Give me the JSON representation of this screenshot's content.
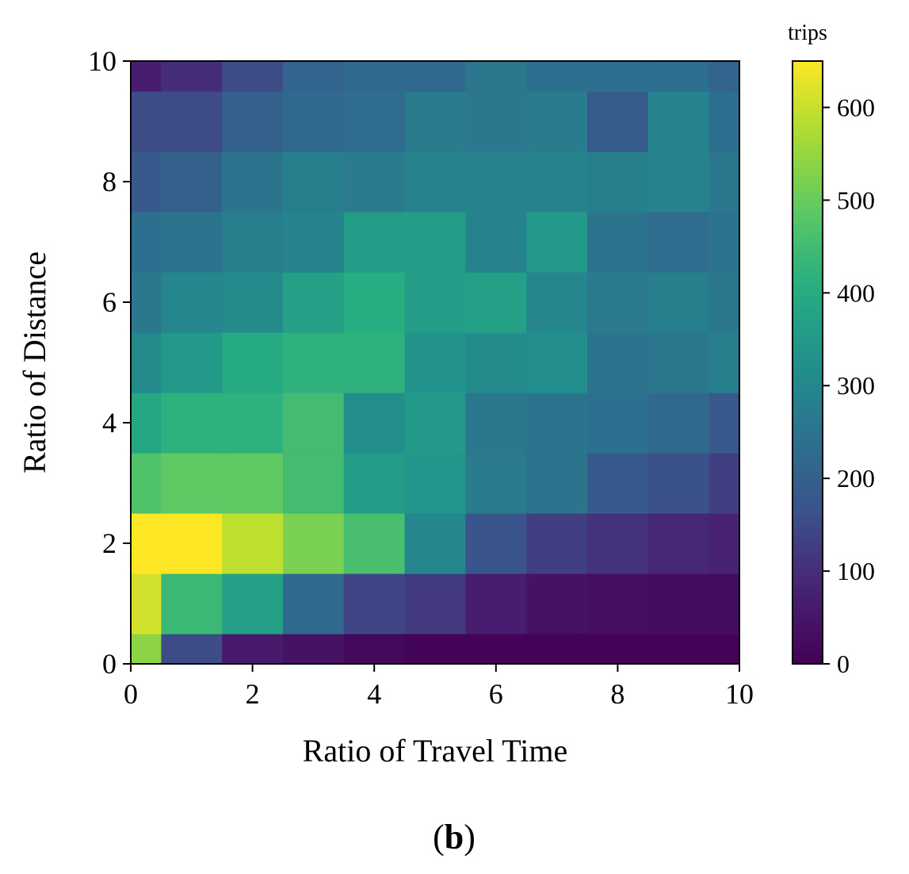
{
  "chart_data": {
    "type": "heatmap",
    "xlabel": "Ratio of Travel Time",
    "ylabel": "Ratio of Distance",
    "panel_label": "b",
    "colorbar": {
      "title": "trips",
      "min": 0,
      "max": 650,
      "colormap": "viridis",
      "ticks": [
        0,
        100,
        200,
        300,
        400,
        500,
        600
      ]
    },
    "xlim": [
      0,
      10
    ],
    "ylim": [
      0,
      10
    ],
    "x_ticks": [
      0,
      2,
      4,
      6,
      8,
      10
    ],
    "y_ticks": [
      0,
      2,
      4,
      6,
      8,
      10
    ],
    "x_bin_edges": [
      0,
      0.5,
      1.5,
      2.5,
      3.5,
      4.5,
      5.5,
      6.5,
      7.5,
      8.5,
      9.5,
      10
    ],
    "y_bin_edges": [
      0,
      0.5,
      1.5,
      2.5,
      3.5,
      4.5,
      5.5,
      6.5,
      7.5,
      8.5,
      9.5,
      10
    ],
    "values": [
      [
        540,
        150,
        60,
        40,
        20,
        10,
        5,
        5,
        5,
        5,
        5
      ],
      [
        610,
        440,
        370,
        220,
        140,
        120,
        70,
        40,
        35,
        30,
        30
      ],
      [
        650,
        650,
        590,
        520,
        460,
        300,
        170,
        130,
        110,
        90,
        80
      ],
      [
        470,
        490,
        490,
        450,
        360,
        340,
        270,
        250,
        180,
        160,
        130
      ],
      [
        390,
        420,
        420,
        450,
        320,
        350,
        260,
        250,
        240,
        220,
        180
      ],
      [
        310,
        350,
        400,
        420,
        420,
        330,
        310,
        320,
        250,
        260,
        280
      ],
      [
        260,
        300,
        310,
        370,
        410,
        360,
        370,
        300,
        270,
        280,
        260
      ],
      [
        240,
        250,
        280,
        290,
        360,
        360,
        290,
        350,
        250,
        230,
        250
      ],
      [
        180,
        200,
        250,
        280,
        270,
        290,
        290,
        290,
        280,
        290,
        260
      ],
      [
        150,
        150,
        200,
        220,
        230,
        270,
        260,
        270,
        190,
        290,
        240
      ],
      [
        70,
        100,
        150,
        210,
        220,
        220,
        260,
        240,
        240,
        240,
        210
      ]
    ]
  }
}
